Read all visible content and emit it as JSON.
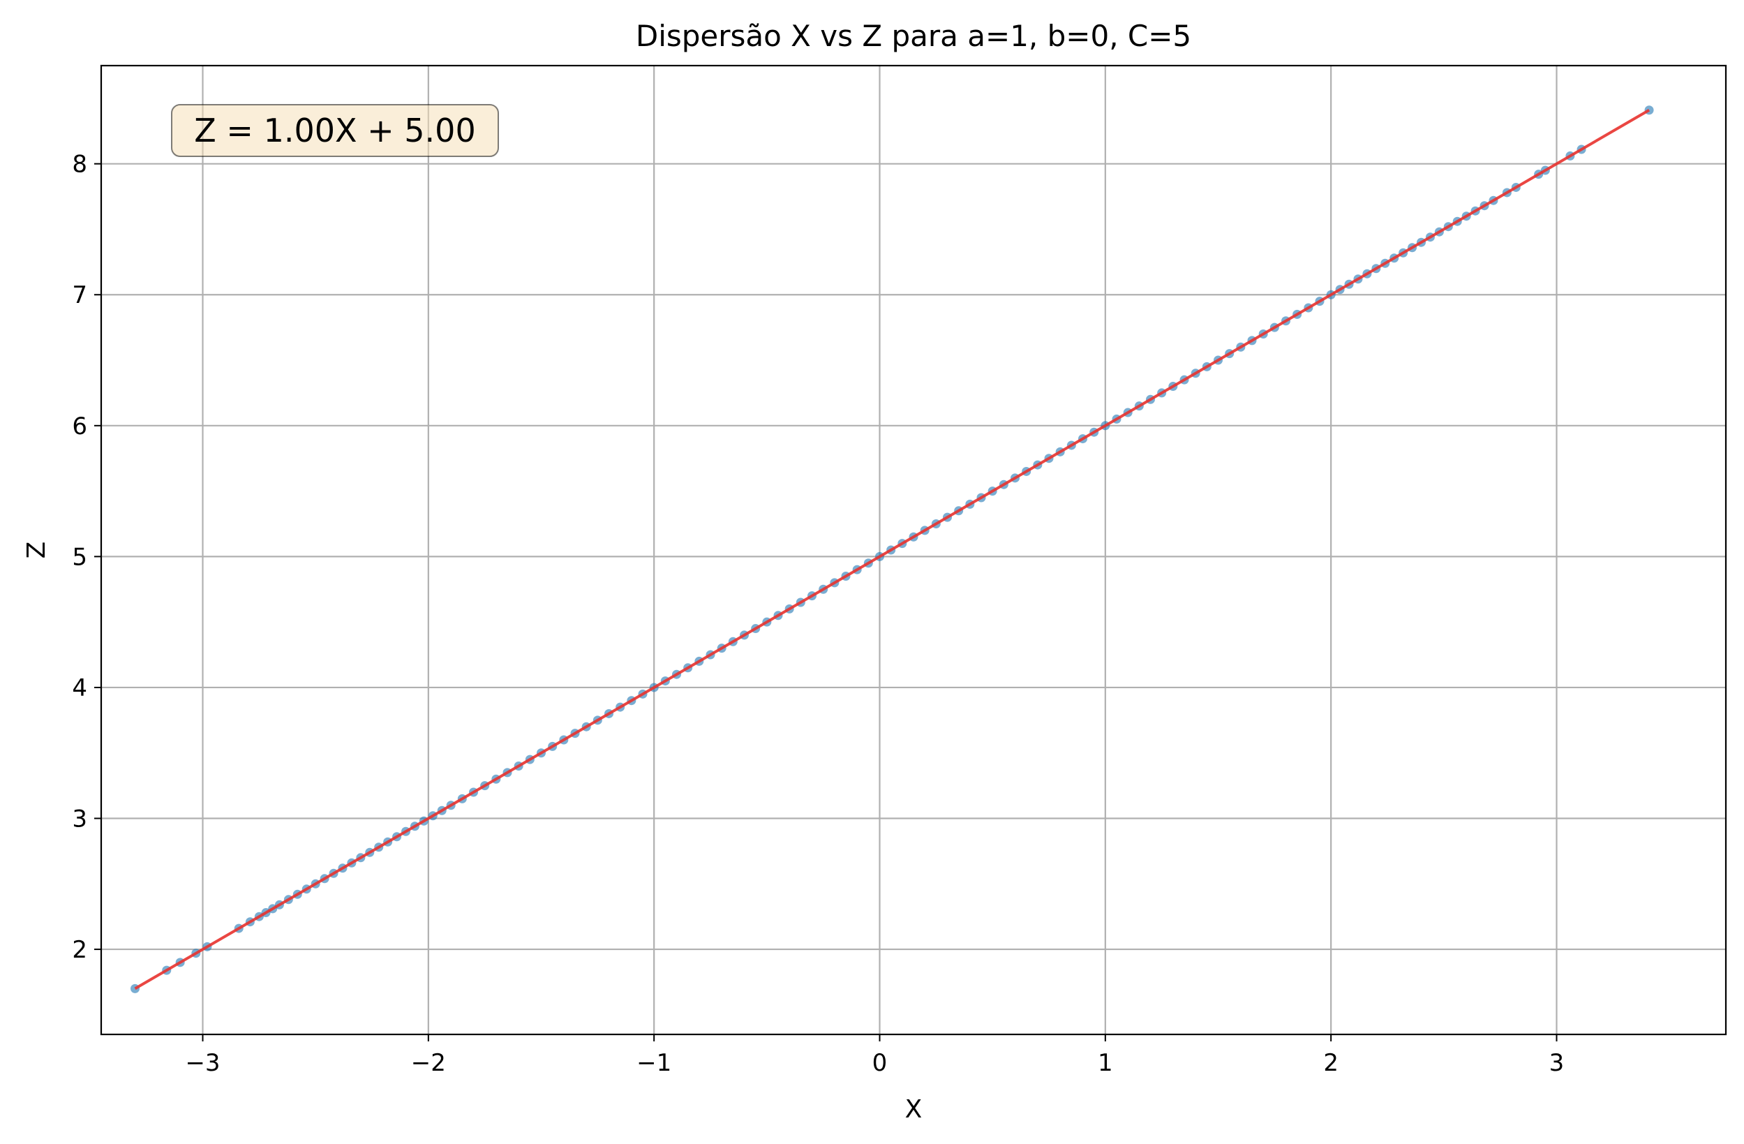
{
  "chart_data": {
    "type": "scatter",
    "title": "Dispersão X vs Z para a=1, b=0, C=5",
    "xlabel": "X",
    "ylabel": "Z",
    "xlim": [
      -3.45,
      3.75
    ],
    "ylim": [
      1.35,
      8.75
    ],
    "xticks": [
      -3,
      -2,
      -1,
      0,
      1,
      2,
      3
    ],
    "yticks": [
      2,
      3,
      4,
      5,
      6,
      7,
      8
    ],
    "xtick_labels": [
      "−3",
      "−2",
      "−1",
      "0",
      "1",
      "2",
      "3"
    ],
    "ytick_labels": [
      "2",
      "3",
      "4",
      "5",
      "6",
      "7",
      "8"
    ],
    "grid": true,
    "annotation": "Z = 1.00X + 5.00",
    "annotation_position": "top-left",
    "scatter_color": "#1f77b4",
    "fit_color": "#e8322d",
    "annotation_box_color": "#f5deb3",
    "series": [
      {
        "x": [
          -3.3,
          -3.16,
          -3.1,
          -3.03,
          -2.98,
          -2.84,
          -2.79,
          -2.75,
          -2.72,
          -2.69,
          -2.66,
          -2.62,
          -2.58,
          -2.54,
          -2.5,
          -2.46,
          -2.42,
          -2.38,
          -2.34,
          -2.3,
          -2.26,
          -2.22,
          -2.18,
          -2.14,
          -2.1,
          -2.06,
          -2.02,
          -1.98,
          -1.94,
          -1.9,
          -1.85,
          -1.8,
          -1.75,
          -1.7,
          -1.65,
          -1.6,
          -1.55,
          -1.5,
          -1.45,
          -1.4,
          -1.35,
          -1.3,
          -1.25,
          -1.2,
          -1.15,
          -1.1,
          -1.05,
          -1.0,
          -0.95,
          -0.9,
          -0.85,
          -0.8,
          -0.75,
          -0.7,
          -0.65,
          -0.6,
          -0.55,
          -0.5,
          -0.45,
          -0.4,
          -0.35,
          -0.3,
          -0.25,
          -0.2,
          -0.15,
          -0.1,
          -0.05,
          0.0,
          0.05,
          0.1,
          0.15,
          0.2,
          0.25,
          0.3,
          0.35,
          0.4,
          0.45,
          0.5,
          0.55,
          0.6,
          0.65,
          0.7,
          0.75,
          0.8,
          0.85,
          0.9,
          0.95,
          1.0,
          1.05,
          1.1,
          1.15,
          1.2,
          1.25,
          1.3,
          1.35,
          1.4,
          1.45,
          1.5,
          1.55,
          1.6,
          1.65,
          1.7,
          1.75,
          1.8,
          1.85,
          1.9,
          1.95,
          2.0,
          2.04,
          2.08,
          2.12,
          2.16,
          2.2,
          2.24,
          2.28,
          2.32,
          2.36,
          2.4,
          2.44,
          2.48,
          2.52,
          2.56,
          2.6,
          2.64,
          2.68,
          2.72,
          2.78,
          2.82,
          2.92,
          2.95,
          3.06,
          3.11,
          3.41
        ],
        "y": [
          1.7,
          1.84,
          1.9,
          1.97,
          2.02,
          2.16,
          2.21,
          2.25,
          2.28,
          2.31,
          2.34,
          2.38,
          2.42,
          2.46,
          2.5,
          2.54,
          2.58,
          2.62,
          2.66,
          2.7,
          2.74,
          2.78,
          2.82,
          2.86,
          2.9,
          2.94,
          2.98,
          3.02,
          3.06,
          3.1,
          3.15,
          3.2,
          3.25,
          3.3,
          3.35,
          3.4,
          3.45,
          3.5,
          3.55,
          3.6,
          3.65,
          3.7,
          3.75,
          3.8,
          3.85,
          3.9,
          3.95,
          4.0,
          4.05,
          4.1,
          4.15,
          4.2,
          4.25,
          4.3,
          4.35,
          4.4,
          4.45,
          4.5,
          4.55,
          4.6,
          4.65,
          4.7,
          4.75,
          4.8,
          4.85,
          4.9,
          4.95,
          5.0,
          5.05,
          5.1,
          5.15,
          5.2,
          5.25,
          5.3,
          5.35,
          5.4,
          5.45,
          5.5,
          5.55,
          5.6,
          5.65,
          5.7,
          5.75,
          5.8,
          5.85,
          5.9,
          5.95,
          6.0,
          6.05,
          6.1,
          6.15,
          6.2,
          6.25,
          6.3,
          6.35,
          6.4,
          6.45,
          6.5,
          6.55,
          6.6,
          6.65,
          6.7,
          6.75,
          6.8,
          6.85,
          6.9,
          6.95,
          7.0,
          7.04,
          7.08,
          7.12,
          7.16,
          7.2,
          7.24,
          7.28,
          7.32,
          7.36,
          7.4,
          7.44,
          7.48,
          7.52,
          7.56,
          7.6,
          7.64,
          7.68,
          7.72,
          7.78,
          7.82,
          7.92,
          7.95,
          8.06,
          8.11,
          8.41
        ]
      }
    ],
    "fit_line": {
      "slope": 1.0,
      "intercept": 5.0,
      "x_range": [
        -3.3,
        3.41
      ]
    }
  }
}
